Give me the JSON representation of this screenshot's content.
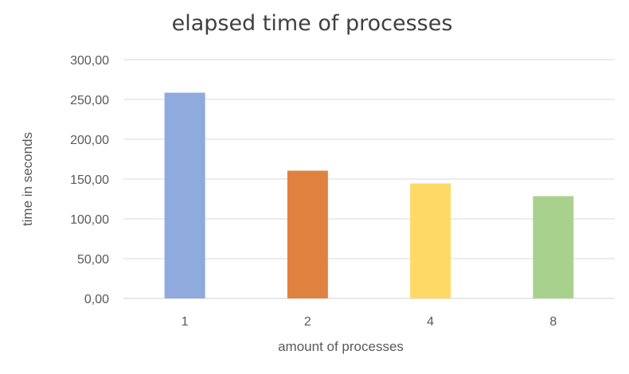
{
  "chart_data": {
    "type": "bar",
    "title": "elapsed time of processes",
    "xlabel": "amount of processes",
    "ylabel": "time in seconds",
    "categories": [
      "1",
      "2",
      "4",
      "8"
    ],
    "values": [
      258.5,
      160.5,
      144.5,
      128.5
    ],
    "colors": [
      "#8FAADC",
      "#E0823F",
      "#FFD966",
      "#A9D18E"
    ],
    "ylim": [
      0,
      300
    ],
    "yticks": [
      "0,00",
      "50,00",
      "100,00",
      "150,00",
      "200,00",
      "250,00",
      "300,00"
    ],
    "grid": true,
    "legend": "none"
  }
}
